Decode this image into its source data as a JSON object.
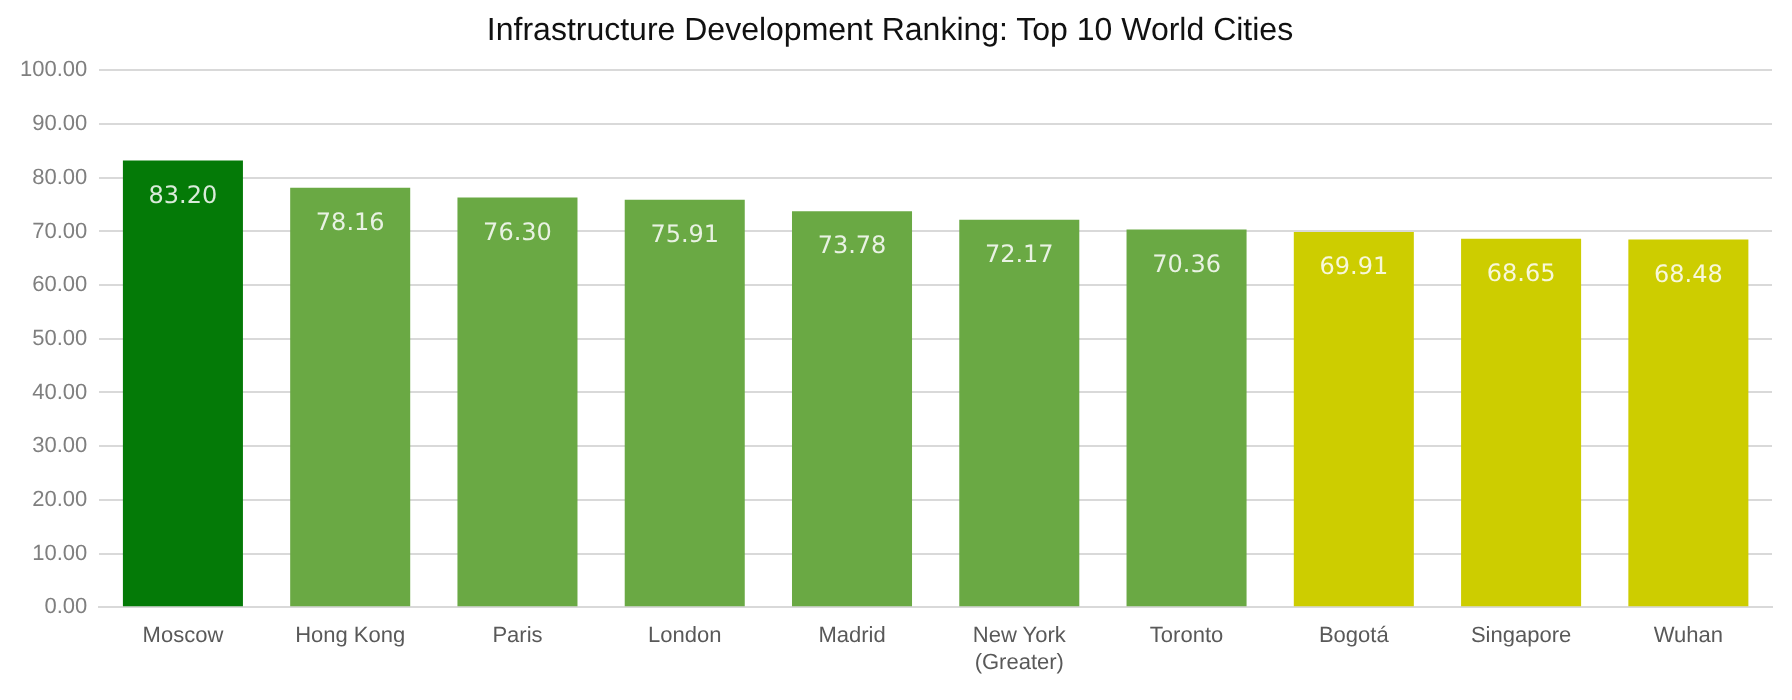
{
  "chart_data": {
    "type": "bar",
    "title": "Infrastructure Development Ranking: Top 10 World Cities",
    "categories": [
      "Moscow",
      "Hong Kong",
      "Paris",
      "London",
      "Madrid",
      "New York (Greater)",
      "Toronto",
      "Bogotá",
      "Singapore",
      "Wuhan"
    ],
    "values": [
      83.2,
      78.16,
      76.3,
      75.91,
      73.78,
      72.17,
      70.36,
      69.91,
      68.65,
      68.48
    ],
    "colors": [
      "#047a07",
      "#6aa944",
      "#6aa944",
      "#6aa944",
      "#6aa944",
      "#6aa944",
      "#6aa944",
      "#cdcd00",
      "#cdcd00",
      "#cdcd00"
    ],
    "value_labels": [
      "83.20",
      "78.16",
      "76.30",
      "75.91",
      "73.78",
      "72.17",
      "70.36",
      "69.91",
      "68.65",
      "68.48"
    ],
    "ylim": [
      0,
      100
    ],
    "yticks": [
      {
        "value": 0,
        "label": "0.00"
      },
      {
        "value": 10,
        "label": "10.00"
      },
      {
        "value": 20,
        "label": "20.00"
      },
      {
        "value": 30,
        "label": "30.00"
      },
      {
        "value": 40,
        "label": "40.00"
      },
      {
        "value": 50,
        "label": "50.00"
      },
      {
        "value": 60,
        "label": "60.00"
      },
      {
        "value": 70,
        "label": "70.00"
      },
      {
        "value": 80,
        "label": "80.00"
      },
      {
        "value": 90,
        "label": "90.00"
      },
      {
        "value": 100,
        "label": "100.00"
      }
    ],
    "grid": "y",
    "legend": false
  }
}
